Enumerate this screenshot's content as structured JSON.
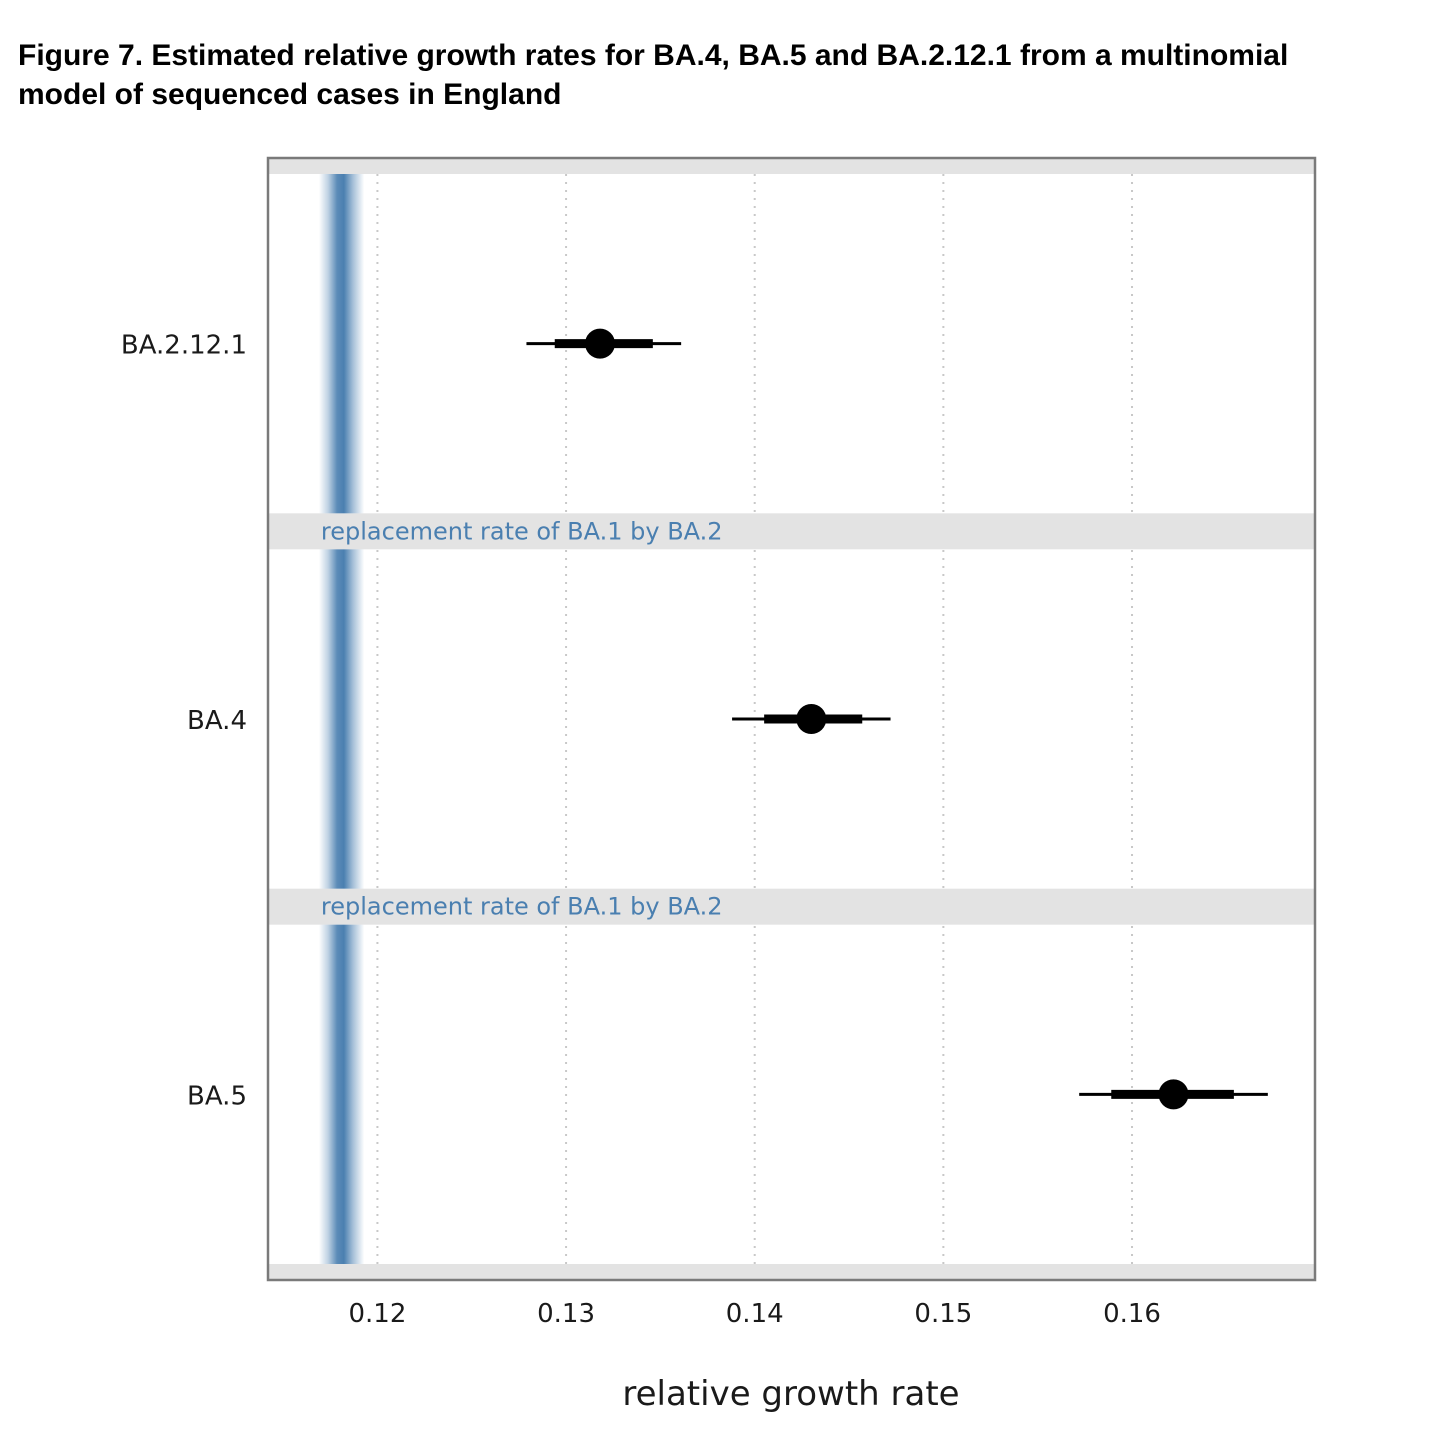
{
  "figure": {
    "title_line1": "Figure 7. Estimated relative growth rates for BA.4, BA.5 and BA.2.12.1 from a multinomial",
    "title_line2": "model of sequenced cases in England"
  },
  "chart_data": {
    "type": "forest",
    "title": "Figure 7. Estimated relative growth rates for BA.4, BA.5 and BA.2.12.1 from a multinomial model of sequenced cases in England",
    "xlabel": "relative growth rate",
    "ylabel": "",
    "xlim": [
      0.1142,
      0.1697
    ],
    "xticks": [
      0.12,
      0.13,
      0.14,
      0.15,
      0.16
    ],
    "xtick_labels": [
      "0.12",
      "0.13",
      "0.14",
      "0.15",
      "0.16"
    ],
    "grid": "vertical dotted",
    "categories": [
      "BA.2.12.1",
      "BA.4",
      "BA.5"
    ],
    "estimates": [
      {
        "label": "BA.2.12.1",
        "point": 0.1318,
        "inner": [
          0.1294,
          0.1346
        ],
        "outer": [
          0.1279,
          0.1361
        ]
      },
      {
        "label": "BA.4",
        "point": 0.143,
        "inner": [
          0.1405,
          0.1457
        ],
        "outer": [
          0.1388,
          0.1472
        ]
      },
      {
        "label": "BA.5",
        "point": 0.1622,
        "inner": [
          0.1589,
          0.1654
        ],
        "outer": [
          0.1572,
          0.1672
        ]
      }
    ],
    "reference": {
      "label": "replacement rate of BA.1 by BA.2",
      "center": 0.1181,
      "halfwidth": 0.0012,
      "color": "#4a7fb0"
    }
  }
}
